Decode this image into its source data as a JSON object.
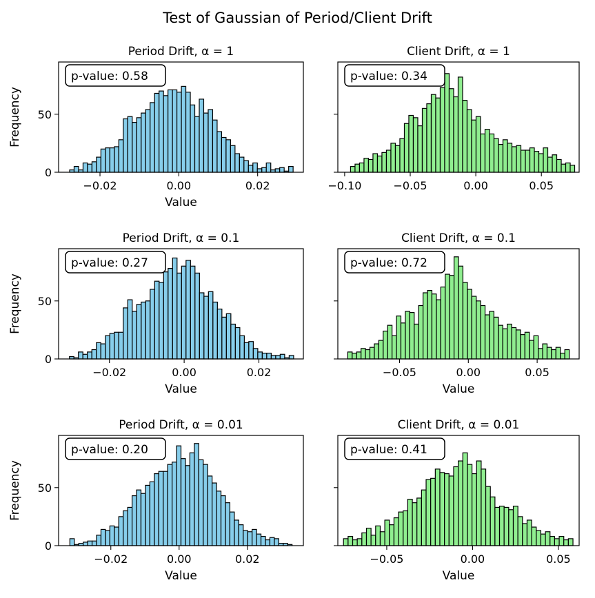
{
  "suptitle": "Test of Gaussian of Period/Client Drift",
  "colors": {
    "period": "#87ceeb",
    "client": "#90ee90",
    "edge": "#000000"
  },
  "chart_data": [
    {
      "type": "histogram",
      "title": "Period Drift, α = 1",
      "xlabel": "Value",
      "ylabel": "Frequency",
      "pvalue_label": "p-value: 0.58",
      "color": "period",
      "xlim": [
        -0.0305,
        0.0316
      ],
      "ylim": [
        0,
        95
      ],
      "xticks": [
        -0.02,
        0.0,
        0.02
      ],
      "xtick_labels": [
        "−0.02",
        "0.00",
        "0.02"
      ],
      "yticks": [
        0,
        50
      ],
      "ytick_labels": [
        "0",
        "50"
      ],
      "bin_start": -0.0277,
      "bin_end": 0.029,
      "counts": [
        2,
        5,
        2,
        8,
        7,
        9,
        13,
        20,
        21,
        21,
        22,
        28,
        46,
        48,
        43,
        47,
        51,
        54,
        60,
        68,
        70,
        66,
        71,
        71,
        69,
        74,
        69,
        58,
        48,
        63,
        51,
        54,
        45,
        35,
        30,
        28,
        23,
        16,
        13,
        10,
        6,
        8,
        3,
        4,
        8,
        2,
        3,
        4,
        1,
        5
      ]
    },
    {
      "type": "histogram",
      "title": "Client Drift, α = 1",
      "xlabel": "",
      "ylabel": "",
      "pvalue_label": "p-value: 0.34",
      "color": "client",
      "xlim": [
        -0.1052,
        0.0788
      ],
      "ylim": [
        0,
        95
      ],
      "xticks": [
        -0.1,
        -0.05,
        0.0,
        0.05
      ],
      "xtick_labels": [
        "−0.10",
        "−0.05",
        "0.00",
        "0.05"
      ],
      "yticks": [
        0,
        50
      ],
      "ytick_labels": [],
      "bin_start": -0.0955,
      "bin_end": 0.0754,
      "counts": [
        5,
        7,
        8,
        12,
        11,
        16,
        14,
        17,
        19,
        25,
        23,
        29,
        42,
        49,
        47,
        40,
        55,
        59,
        67,
        64,
        73,
        85,
        72,
        65,
        82,
        62,
        54,
        45,
        48,
        33,
        37,
        33,
        29,
        24,
        28,
        25,
        22,
        23,
        19,
        19,
        21,
        18,
        16,
        21,
        13,
        15,
        11,
        7,
        8,
        6
      ]
    },
    {
      "type": "histogram",
      "title": "Period Drift, α = 0.1",
      "xlabel": "Value",
      "ylabel": "Frequency",
      "pvalue_label": "p-value: 0.27",
      "color": "period",
      "xlim": [
        -0.0336,
        0.0319
      ],
      "ylim": [
        0,
        95
      ],
      "xticks": [
        -0.02,
        0.0,
        0.02
      ],
      "xtick_labels": [
        "−0.02",
        "0.00",
        "0.02"
      ],
      "yticks": [
        0,
        50
      ],
      "ytick_labels": [
        "0",
        "50"
      ],
      "bin_start": -0.0307,
      "bin_end": 0.0293,
      "counts": [
        2,
        1,
        6,
        4,
        6,
        8,
        14,
        13,
        20,
        22,
        23,
        23,
        44,
        51,
        41,
        47,
        49,
        50,
        60,
        67,
        66,
        75,
        78,
        87,
        74,
        80,
        85,
        80,
        74,
        57,
        54,
        58,
        49,
        43,
        36,
        39,
        30,
        27,
        20,
        14,
        15,
        9,
        6,
        5,
        5,
        3,
        3,
        4,
        1,
        3
      ]
    },
    {
      "type": "histogram",
      "title": "Client Drift, α = 0.1",
      "xlabel": "Value",
      "ylabel": "",
      "pvalue_label": "p-value: 0.72",
      "color": "client",
      "xlim": [
        -0.0948,
        0.0805
      ],
      "ylim": [
        0,
        95
      ],
      "xticks": [
        -0.05,
        0.0,
        0.05
      ],
      "xtick_labels": [
        "−0.05",
        "0.00",
        "0.05"
      ],
      "yticks": [
        0,
        50
      ],
      "ytick_labels": [],
      "bin_start": -0.0876,
      "bin_end": 0.0733,
      "counts": [
        6,
        5,
        6,
        9,
        8,
        10,
        13,
        16,
        24,
        29,
        20,
        37,
        31,
        41,
        40,
        30,
        46,
        57,
        59,
        56,
        51,
        62,
        73,
        72,
        88,
        80,
        66,
        60,
        54,
        50,
        46,
        38,
        41,
        36,
        29,
        26,
        30,
        27,
        25,
        21,
        23,
        16,
        20,
        9,
        13,
        10,
        8,
        10,
        5,
        8
      ]
    },
    {
      "type": "histogram",
      "title": "Period Drift, α = 0.01",
      "xlabel": "Value",
      "ylabel": "Frequency",
      "pvalue_label": "p-value: 0.20",
      "color": "period",
      "xlim": [
        -0.0353,
        0.0364
      ],
      "ylim": [
        0,
        95
      ],
      "xticks": [
        -0.02,
        0.0,
        0.02
      ],
      "xtick_labels": [
        "−0.02",
        "0.00",
        "0.02"
      ],
      "yticks": [
        0,
        50
      ],
      "ytick_labels": [
        "0",
        "50"
      ],
      "bin_start": -0.032,
      "bin_end": 0.0331,
      "counts": [
        6,
        1,
        2,
        3,
        4,
        4,
        9,
        14,
        13,
        17,
        16,
        25,
        30,
        33,
        43,
        48,
        45,
        52,
        55,
        62,
        64,
        64,
        70,
        72,
        86,
        75,
        69,
        80,
        88,
        74,
        70,
        60,
        54,
        47,
        43,
        37,
        29,
        22,
        18,
        13,
        12,
        14,
        10,
        8,
        5,
        7,
        6,
        2,
        2,
        1
      ]
    },
    {
      "type": "histogram",
      "title": "Client Drift, α = 0.01",
      "xlabel": "Value",
      "ylabel": "",
      "pvalue_label": "p-value: 0.41",
      "color": "client",
      "xlim": [
        -0.0785,
        0.0621
      ],
      "ylim": [
        0,
        95
      ],
      "xticks": [
        -0.05,
        0.0,
        0.05
      ],
      "xtick_labels": [
        "−0.05",
        "0.00",
        "0.05"
      ],
      "yticks": [
        0,
        50
      ],
      "ytick_labels": [],
      "bin_start": -0.0752,
      "bin_end": 0.0585,
      "counts": [
        6,
        8,
        5,
        6,
        11,
        15,
        9,
        17,
        12,
        22,
        18,
        24,
        29,
        30,
        40,
        37,
        41,
        48,
        57,
        58,
        66,
        63,
        62,
        60,
        68,
        73,
        80,
        70,
        62,
        73,
        66,
        51,
        42,
        33,
        34,
        33,
        31,
        34,
        25,
        19,
        22,
        16,
        13,
        10,
        12,
        8,
        6,
        8,
        5,
        6
      ]
    }
  ]
}
